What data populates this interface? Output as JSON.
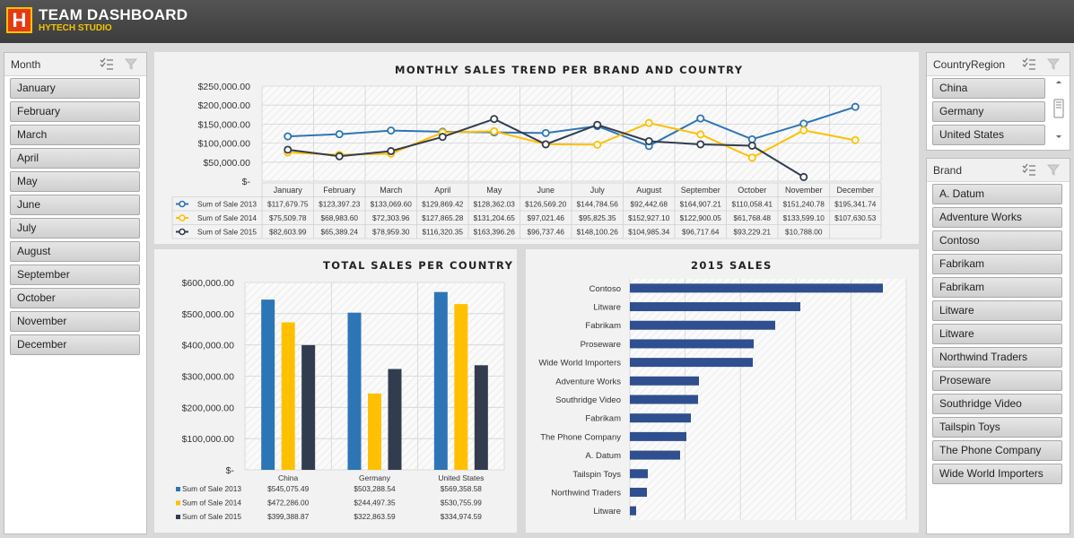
{
  "header": {
    "logo_letter": "H",
    "title": "TEAM DASHBOARD",
    "subtitle": "HYTECH STUDIO"
  },
  "month_slicer": {
    "title": "Month",
    "items": [
      "January",
      "February",
      "March",
      "April",
      "May",
      "June",
      "July",
      "August",
      "September",
      "October",
      "November",
      "December"
    ]
  },
  "country_slicer": {
    "title": "CountryRegion",
    "items": [
      "China",
      "Germany",
      "United States"
    ]
  },
  "brand_slicer": {
    "title": "Brand",
    "items": [
      "A. Datum",
      "Adventure Works",
      "Contoso",
      "Fabrikam",
      "Fabrikam",
      "Litware",
      "Litware",
      "Northwind Traders",
      "Proseware",
      "Southridge Video",
      "Tailspin Toys",
      "The Phone Company",
      "Wide World Importers"
    ]
  },
  "colors": {
    "s2013": "#2e75b6",
    "s2014": "#ffc000",
    "s2015": "#323c4f",
    "bar2015": "#2f4f8f"
  },
  "chart_data": [
    {
      "type": "line",
      "title": "MONTHLY SALES TREND PER BRAND AND COUNTRY",
      "categories": [
        "January",
        "February",
        "March",
        "April",
        "May",
        "June",
        "July",
        "August",
        "September",
        "October",
        "November",
        "December"
      ],
      "y_ticks": [
        "$250,000.00",
        "$200,000.00",
        "$150,000.00",
        "$100,000.00",
        "$50,000.00",
        "$-"
      ],
      "ylim": [
        0,
        250000
      ],
      "grid": true,
      "series": [
        {
          "name": "Sum of Sale 2013",
          "values": [
            117679.75,
            123397.23,
            133069.6,
            129869.42,
            128362.03,
            126569.2,
            144784.56,
            92442.68,
            164907.21,
            110058.41,
            151240.78,
            195341.74
          ],
          "labels": [
            "$117,679.75",
            "$123,397.23",
            "$133,069.60",
            "$129,869.42",
            "$128,362.03",
            "$126,569.20",
            "$144,784.56",
            "$92,442.68",
            "$164,907.21",
            "$110,058.41",
            "$151,240.78",
            "$195,341.74"
          ]
        },
        {
          "name": "Sum of Sale 2014",
          "values": [
            75509.78,
            68983.6,
            72303.96,
            127865.28,
            131204.65,
            97021.46,
            95825.35,
            152927.1,
            122900.05,
            61768.48,
            133599.1,
            107630.53
          ],
          "labels": [
            "$75,509.78",
            "$68,983.60",
            "$72,303.96",
            "$127,865.28",
            "$131,204.65",
            "$97,021.46",
            "$95,825.35",
            "$152,927.10",
            "$122,900.05",
            "$61,768.48",
            "$133,599.10",
            "$107,630.53"
          ]
        },
        {
          "name": "Sum of Sale 2015",
          "values": [
            82603.99,
            65389.24,
            78959.3,
            116320.35,
            163396.26,
            96737.46,
            148100.26,
            104985.34,
            96717.64,
            93229.21,
            10788.0,
            null
          ],
          "labels": [
            "$82,603.99",
            "$65,389.24",
            "$78,959.30",
            "$116,320.35",
            "$163,396.26",
            "$96,737.46",
            "$148,100.26",
            "$104,985.34",
            "$96,717.64",
            "$93,229.21",
            "$10,788.00",
            ""
          ]
        }
      ]
    },
    {
      "type": "bar",
      "title": "TOTAL SALES PER COUNTRY",
      "categories": [
        "China",
        "Germany",
        "United States"
      ],
      "y_ticks": [
        "$600,000.00",
        "$500,000.00",
        "$400,000.00",
        "$300,000.00",
        "$200,000.00",
        "$100,000.00",
        "$-"
      ],
      "ylim": [
        0,
        600000
      ],
      "series": [
        {
          "name": "Sum of Sale 2013",
          "values": [
            545075.49,
            503288.54,
            569358.58
          ],
          "labels": [
            "$545,075.49",
            "$503,288.54",
            "$569,358.58"
          ]
        },
        {
          "name": "Sum of Sale 2014",
          "values": [
            472286.0,
            244497.35,
            530755.99
          ],
          "labels": [
            "$472,286.00",
            "$244,497.35",
            "$530,755.99"
          ]
        },
        {
          "name": "Sum of Sale 2015",
          "values": [
            399388.87,
            322863.59,
            334974.59
          ],
          "labels": [
            "$399,388.87",
            "$322,863.59",
            "$334,974.59"
          ]
        }
      ]
    },
    {
      "type": "bar",
      "orientation": "horizontal",
      "title": "2015 SALES",
      "categories": [
        "Contoso",
        "Litware",
        "Fabrikam",
        "Proseware",
        "Wide World Importers",
        "Adventure Works",
        "Southridge Video",
        "Fabrikam",
        "The Phone Company",
        "A. Datum",
        "Tailspin Toys",
        "Northwind Traders",
        "Litware"
      ],
      "values": [
        282,
        190,
        162,
        138,
        137,
        77,
        76,
        68,
        63,
        56,
        20,
        19,
        7
      ],
      "grid": true
    }
  ]
}
